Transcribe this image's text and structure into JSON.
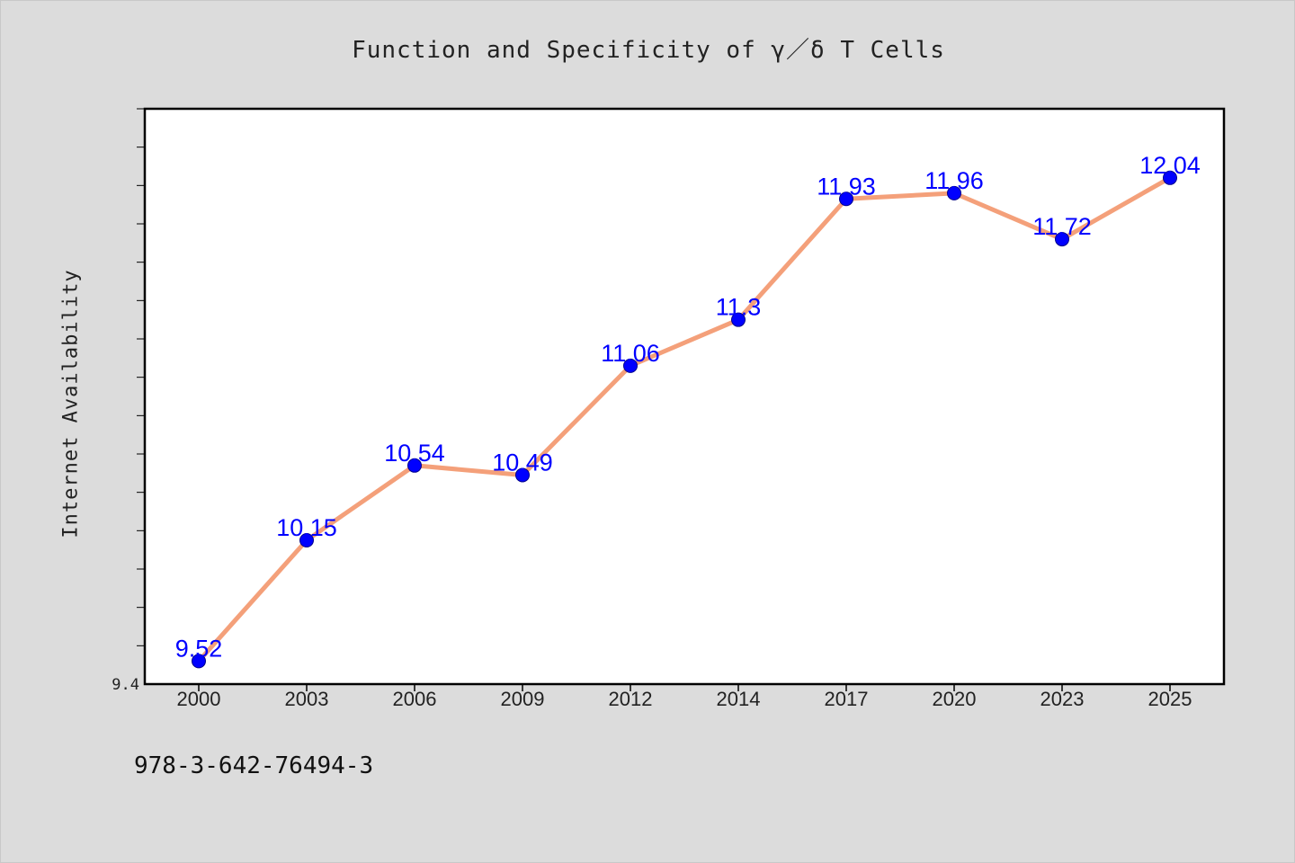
{
  "chart_data": {
    "type": "line",
    "title": "Function and Specificity of  γ／δ  T Cells",
    "xlabel": "",
    "ylabel": "Internet Availability",
    "categories": [
      "2000",
      "2003",
      "2006",
      "2009",
      "2012",
      "2014",
      "2017",
      "2020",
      "2023",
      "2025"
    ],
    "series": [
      {
        "values": [
          9.52,
          10.15,
          10.54,
          10.49,
          11.06,
          11.3,
          11.93,
          11.96,
          11.72,
          12.04
        ]
      }
    ],
    "ylim": [
      9.4,
      12.4
    ],
    "y_min_tick_label": "9.4",
    "data_labels": true,
    "grid": false,
    "legend": "none",
    "colors": {
      "line": "#f4a07a",
      "marker": "#0000ff",
      "data_label": "#0000ff",
      "background": "#dcdcdc",
      "plot_background": "#ffffff"
    }
  },
  "footer_text": "978-3-642-76494-3"
}
